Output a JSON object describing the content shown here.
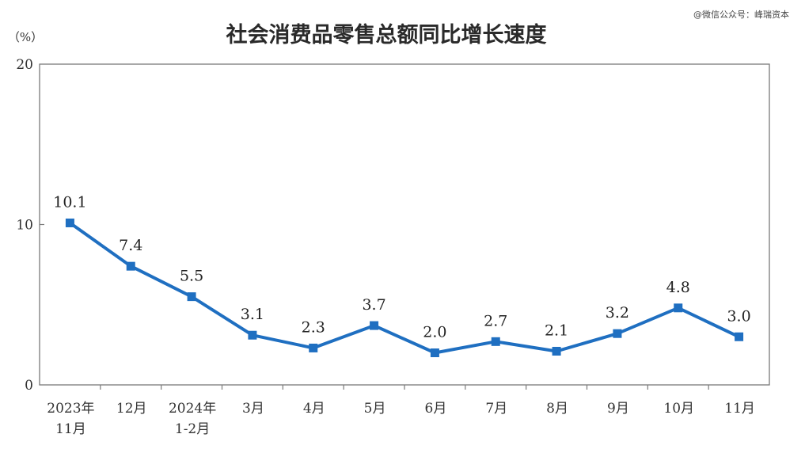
{
  "watermark": "@微信公众号：峰瑞资本",
  "chart_data": {
    "type": "line",
    "title": "社会消费品零售总额同比增长速度",
    "unit_label": "（%）",
    "categories": [
      [
        "2023年",
        "11月"
      ],
      [
        "12月"
      ],
      [
        "2024年",
        "1-2月"
      ],
      [
        "3月"
      ],
      [
        "4月"
      ],
      [
        "5月"
      ],
      [
        "6月"
      ],
      [
        "7月"
      ],
      [
        "8月"
      ],
      [
        "9月"
      ],
      [
        "10月"
      ],
      [
        "11月"
      ]
    ],
    "values": [
      10.1,
      7.4,
      5.5,
      3.1,
      2.3,
      3.7,
      2.0,
      2.7,
      2.1,
      3.2,
      4.8,
      3.0
    ],
    "data_labels": [
      "10.1",
      "7.4",
      "5.5",
      "3.1",
      "2.3",
      "3.7",
      "2.0",
      "2.7",
      "2.1",
      "3.2",
      "4.8",
      "3.0"
    ],
    "yticks": [
      0,
      10,
      20
    ],
    "ylim": [
      0,
      20
    ],
    "line_color": "#1f6fc1",
    "marker": "square",
    "grid": false,
    "legend": "none"
  }
}
